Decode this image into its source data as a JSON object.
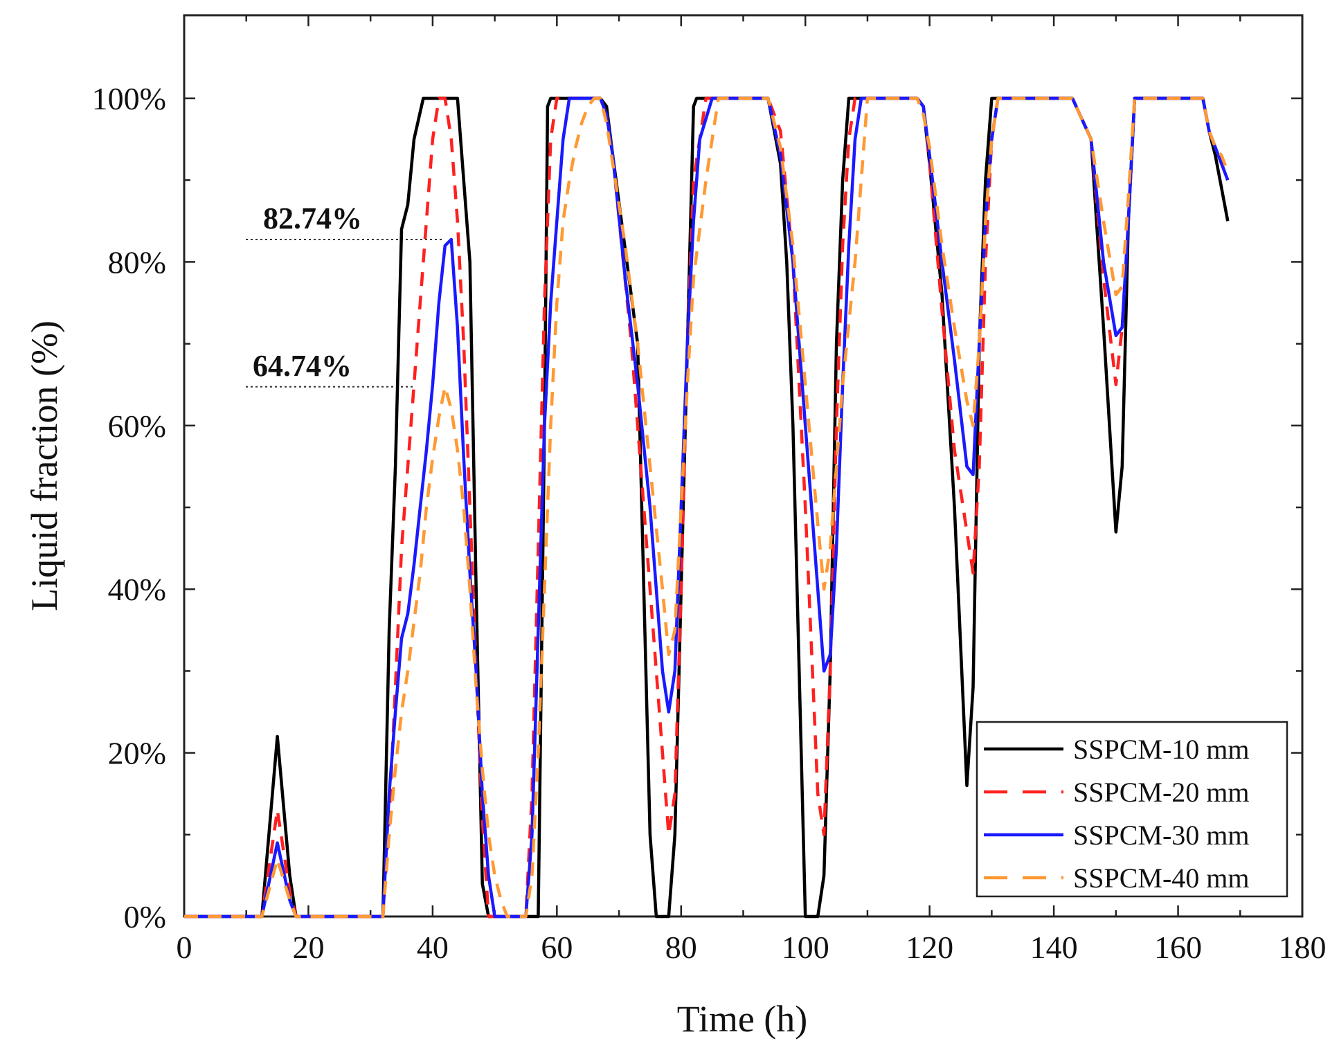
{
  "chart_data": {
    "type": "line",
    "title": "",
    "xlabel": "Time (h)",
    "ylabel": "Liquid fraction (%)",
    "xlim": [
      0,
      180
    ],
    "ylim": [
      0,
      110
    ],
    "x_ticks": [
      0,
      20,
      40,
      60,
      80,
      100,
      120,
      140,
      160,
      180
    ],
    "y_ticks": [
      0,
      20,
      40,
      60,
      80,
      100
    ],
    "x_tick_labels": [
      "0",
      "20",
      "40",
      "60",
      "80",
      "100",
      "120",
      "140",
      "160",
      "180"
    ],
    "y_tick_labels": [
      "0%",
      "20%",
      "40%",
      "60%",
      "80%",
      "100%"
    ],
    "legend_position": "bottom-right",
    "grid": false,
    "annotations": [
      {
        "label": "82.74%",
        "y": 82.74
      },
      {
        "label": "64.74%",
        "y": 64.74
      }
    ],
    "series": [
      {
        "name": "SSPCM-10 mm",
        "color": "#000000",
        "dash": "solid",
        "x": [
          0,
          12.5,
          15,
          17,
          18,
          32,
          33,
          34,
          35,
          36,
          37,
          38.5,
          44,
          46,
          47,
          48,
          49,
          50,
          57,
          58,
          58.5,
          59,
          67,
          68,
          69,
          73,
          74,
          75,
          76,
          77,
          78,
          79,
          80,
          82,
          82.5,
          84,
          94,
          96,
          97,
          98,
          99,
          100,
          102,
          103,
          104,
          105,
          106,
          107,
          118,
          119,
          120,
          122,
          124,
          126,
          127,
          128,
          129,
          130,
          143,
          146,
          148,
          150,
          151,
          152,
          153,
          164,
          165,
          166,
          167,
          168
        ],
        "y": [
          0,
          0,
          22,
          5,
          0,
          0,
          35,
          55,
          84,
          87,
          95,
          100,
          100,
          80,
          40,
          4,
          0,
          0,
          0,
          60,
          99,
          100,
          100,
          99,
          93,
          70,
          40,
          10,
          0,
          0,
          0,
          10,
          40,
          99,
          100,
          100,
          100,
          92,
          80,
          60,
          30,
          0,
          0,
          5,
          30,
          70,
          90,
          100,
          100,
          99,
          92,
          76,
          50,
          16,
          28,
          70,
          90,
          100,
          100,
          95,
          72,
          47,
          55,
          85,
          100,
          100,
          96,
          93,
          89,
          85
        ]
      },
      {
        "name": "SSPCM-20 mm",
        "color": "#ff2020",
        "dash": "20,14",
        "x": [
          0,
          12.5,
          15,
          17,
          18,
          32,
          33,
          34,
          35,
          36,
          37,
          38,
          39,
          40,
          41,
          42,
          43,
          44,
          45,
          46,
          47,
          48,
          49,
          50,
          52,
          55,
          56,
          57,
          58,
          59,
          60,
          67,
          68,
          69,
          72,
          74,
          76,
          78,
          79,
          80,
          81,
          82,
          84,
          94,
          96,
          98,
          100,
          102,
          103,
          104,
          105,
          106,
          107,
          108,
          118,
          119,
          120,
          122,
          124,
          127,
          128,
          129,
          130,
          131,
          143,
          146,
          148,
          150,
          151,
          152,
          153,
          164,
          165,
          166,
          167,
          168
        ],
        "y": [
          0,
          0,
          13,
          3,
          0,
          0,
          12,
          28,
          45,
          55,
          65,
          75,
          85,
          95,
          100,
          100,
          95,
          85,
          70,
          50,
          30,
          12,
          0,
          0,
          0,
          0,
          15,
          45,
          75,
          95,
          100,
          100,
          98,
          93,
          70,
          50,
          30,
          10,
          15,
          40,
          70,
          90,
          100,
          100,
          96,
          80,
          50,
          15,
          10,
          30,
          60,
          82,
          95,
          100,
          100,
          99,
          92,
          74,
          57,
          42,
          55,
          80,
          95,
          100,
          100,
          95,
          78,
          65,
          72,
          85,
          100,
          100,
          96,
          94,
          92,
          90
        ]
      },
      {
        "name": "SSPCM-30 mm",
        "color": "#1a1aff",
        "dash": "solid",
        "x": [
          0,
          12.5,
          15,
          17,
          18,
          32,
          33,
          34,
          35,
          36,
          37,
          38,
          39,
          40,
          41,
          42,
          43,
          44,
          45,
          46,
          47,
          48,
          49,
          50,
          52,
          55,
          56,
          57,
          58,
          59,
          60,
          61,
          62,
          67,
          68,
          69,
          71,
          73,
          75,
          76,
          77,
          78,
          79,
          80,
          81,
          82,
          83,
          85,
          94,
          96,
          98,
          100,
          102,
          103,
          104,
          105,
          106,
          107,
          108,
          109,
          118,
          119,
          120,
          122,
          124,
          126,
          127,
          128,
          129,
          130,
          131,
          143,
          146,
          148,
          150,
          151,
          152,
          153,
          164,
          165,
          166,
          167,
          168
        ],
        "y": [
          0,
          0,
          9,
          2,
          0,
          0,
          15,
          25,
          34,
          37,
          43,
          50,
          57,
          65,
          75,
          82,
          82.74,
          72,
          56,
          42,
          30,
          15,
          5,
          0,
          0,
          0,
          10,
          35,
          60,
          75,
          85,
          95,
          100,
          100,
          98,
          93,
          78,
          65,
          50,
          40,
          30,
          25,
          30,
          50,
          70,
          85,
          95,
          100,
          100,
          93,
          80,
          60,
          40,
          30,
          32,
          45,
          65,
          82,
          95,
          100,
          100,
          99,
          93,
          80,
          68,
          55,
          54,
          70,
          85,
          95,
          100,
          100,
          95,
          80,
          71,
          72,
          85,
          100,
          100,
          96,
          94,
          92,
          90
        ]
      },
      {
        "name": "SSPCM-40 mm",
        "color": "#ff9933",
        "dash": "20,14",
        "x": [
          0,
          12.5,
          15,
          17,
          18,
          32,
          33,
          34,
          35,
          36,
          37,
          38,
          39,
          40,
          41,
          42,
          43,
          44,
          45,
          46,
          47,
          48,
          49,
          50,
          51,
          52,
          55,
          56,
          57,
          58,
          59,
          60,
          61,
          62,
          63,
          64,
          65,
          66,
          67,
          68,
          69,
          71,
          73,
          75,
          77,
          78,
          79,
          80,
          81,
          82,
          84,
          86,
          94,
          96,
          98,
          100,
          102,
          103,
          104,
          105,
          106,
          108,
          110,
          118,
          119,
          120,
          122,
          124,
          126,
          127,
          128,
          129,
          130,
          131,
          132,
          143,
          146,
          148,
          150,
          151,
          152,
          153,
          164,
          165,
          166,
          167,
          168
        ],
        "y": [
          0,
          0,
          7,
          2,
          0,
          0,
          10,
          18,
          25,
          30,
          36,
          42,
          50,
          56,
          61,
          64.74,
          62,
          57,
          50,
          40,
          28,
          18,
          10,
          5,
          2,
          0,
          0,
          5,
          20,
          40,
          60,
          75,
          85,
          90,
          94,
          97,
          99,
          100,
          100,
          97,
          92,
          82,
          70,
          55,
          40,
          32,
          35,
          50,
          65,
          78,
          90,
          100,
          100,
          94,
          82,
          65,
          48,
          40,
          45,
          55,
          65,
          80,
          100,
          100,
          98,
          94,
          82,
          72,
          63,
          60,
          70,
          85,
          95,
          100,
          100,
          100,
          95,
          85,
          76,
          77,
          88,
          100,
          100,
          96,
          94,
          93,
          91
        ]
      }
    ]
  }
}
